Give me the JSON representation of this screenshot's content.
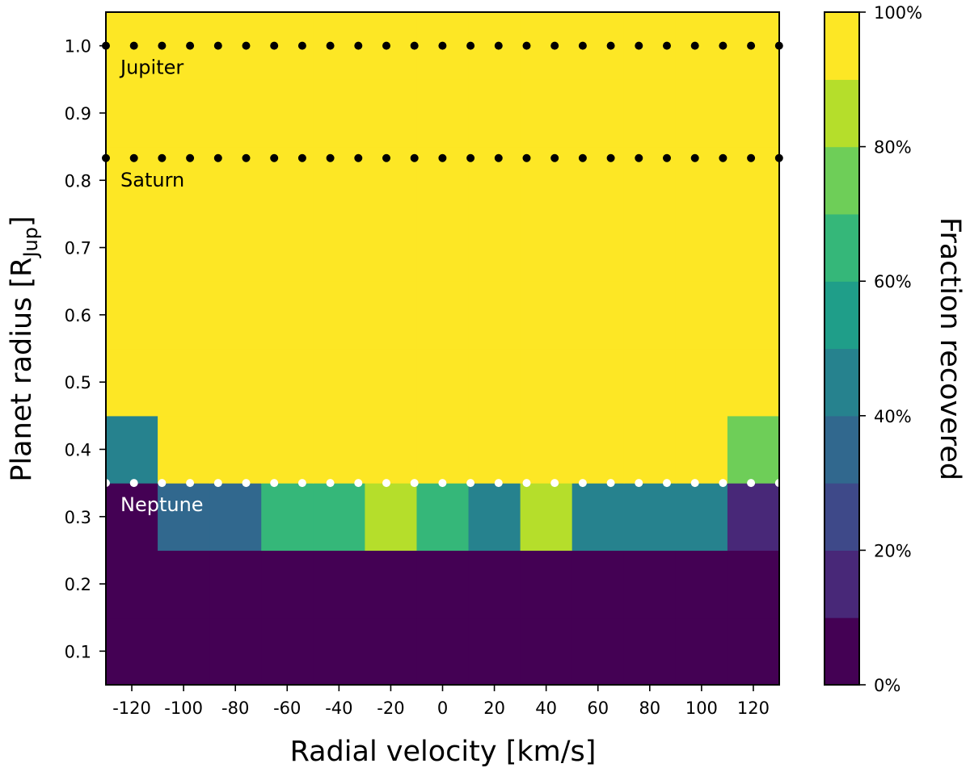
{
  "chart_data": {
    "type": "heatmap",
    "xlabel": "Radial velocity [km/s]",
    "ylabel": {
      "main": "Planet radius [R",
      "sub": "Jup",
      "end": "]"
    },
    "colorbar_label": "Fraction recovered",
    "x_categories": [
      -120,
      -100,
      -80,
      -60,
      -40,
      -20,
      0,
      20,
      40,
      60,
      80,
      100,
      120
    ],
    "y_categories": [
      0.1,
      0.2,
      0.3,
      0.4,
      0.5,
      0.6,
      0.7,
      0.8,
      0.9,
      1.0
    ],
    "x_tick_labels": [
      "-120",
      "-100",
      "-80",
      "-60",
      "-40",
      "-20",
      "0",
      "20",
      "40",
      "60",
      "80",
      "100",
      "120"
    ],
    "y_tick_labels": [
      "0.1",
      "0.2",
      "0.3",
      "0.4",
      "0.5",
      "0.6",
      "0.7",
      "0.8",
      "0.9",
      "1.0"
    ],
    "colorbar_tick_labels": [
      "0%",
      "20%",
      "40%",
      "60%",
      "80%",
      "100%"
    ],
    "colorbar_levels": 10,
    "colormap": "viridis",
    "values": [
      [
        0,
        0,
        0,
        0,
        0,
        0,
        0,
        0,
        0,
        0,
        0,
        0,
        0
      ],
      [
        0,
        0,
        0,
        0,
        0,
        0,
        0,
        0,
        0,
        0,
        0,
        0,
        0
      ],
      [
        0,
        30,
        30,
        60,
        60,
        80,
        60,
        40,
        80,
        40,
        40,
        40,
        10
      ],
      [
        40,
        90,
        100,
        100,
        100,
        100,
        100,
        100,
        100,
        100,
        100,
        100,
        70
      ],
      [
        100,
        100,
        100,
        100,
        100,
        100,
        100,
        100,
        100,
        100,
        100,
        100,
        100
      ],
      [
        100,
        100,
        100,
        100,
        100,
        100,
        100,
        100,
        100,
        100,
        100,
        100,
        100
      ],
      [
        100,
        100,
        100,
        100,
        100,
        100,
        100,
        100,
        100,
        100,
        100,
        100,
        100
      ],
      [
        100,
        100,
        100,
        100,
        100,
        100,
        100,
        100,
        100,
        100,
        100,
        100,
        100
      ],
      [
        100,
        100,
        100,
        100,
        100,
        100,
        100,
        100,
        100,
        100,
        100,
        100,
        100
      ],
      [
        100,
        100,
        100,
        100,
        100,
        100,
        100,
        100,
        100,
        100,
        100,
        100,
        100
      ]
    ],
    "reference_lines": [
      {
        "label": "Jupiter",
        "y": 1.0,
        "color": "#000000"
      },
      {
        "label": "Saturn",
        "y": 0.833,
        "color": "#000000"
      },
      {
        "label": "Neptune",
        "y": 0.35,
        "color": "#ffffff"
      }
    ]
  }
}
